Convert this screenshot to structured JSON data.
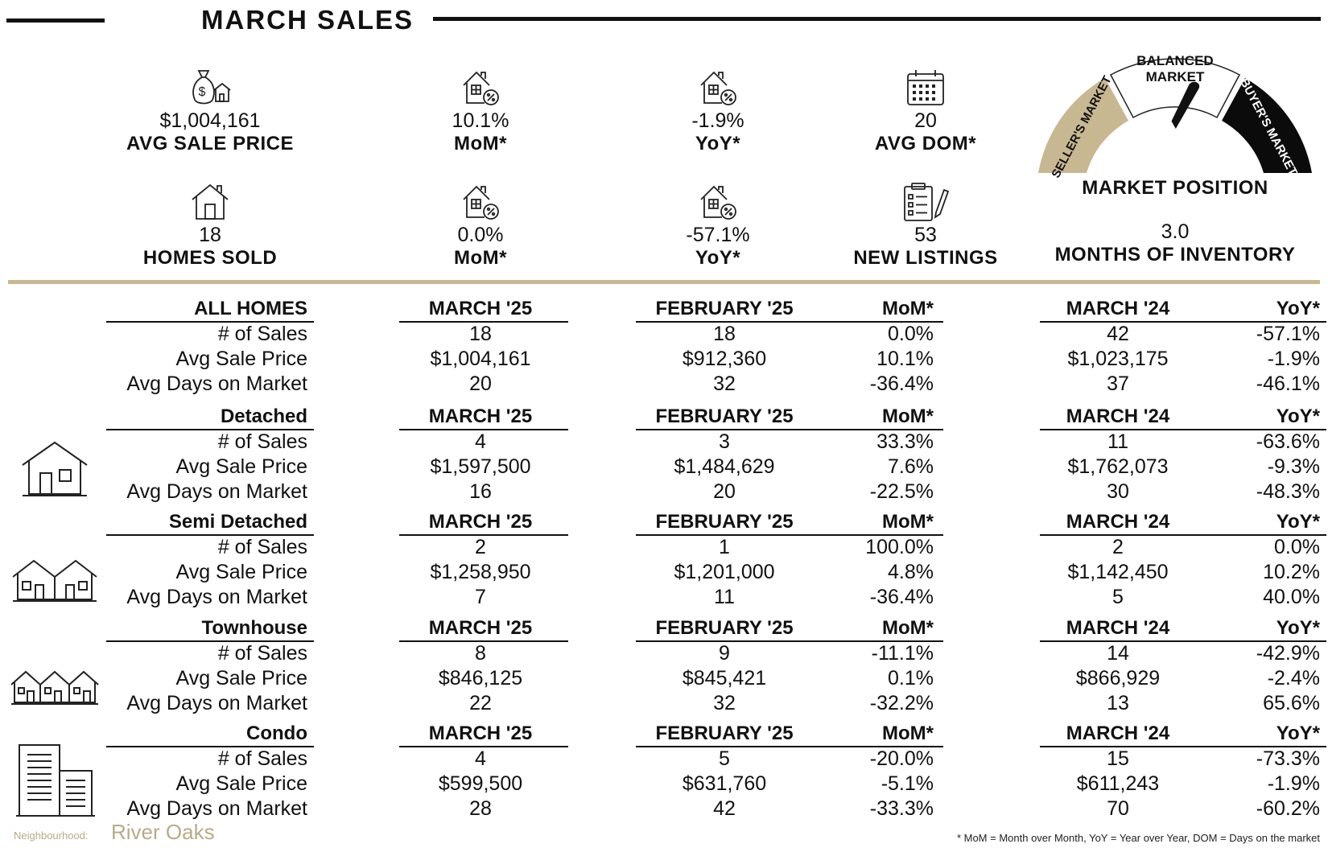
{
  "title": "MARCH SALES",
  "kpis_top": [
    {
      "value": "$1,004,161",
      "label": "AVG SALE PRICE",
      "icon": "money-bag-house-icon"
    },
    {
      "value": "10.1%",
      "label": "MoM*",
      "icon": "house-percent-icon"
    },
    {
      "value": "-1.9%",
      "label": "YoY*",
      "icon": "house-percent-icon"
    },
    {
      "value": "20",
      "label": "AVG DOM*",
      "icon": "calendar-icon"
    }
  ],
  "kpis_bottom": [
    {
      "value": "18",
      "label": "HOMES SOLD",
      "icon": "house-outline-icon"
    },
    {
      "value": "0.0%",
      "label": "MoM*",
      "icon": "house-percent-icon"
    },
    {
      "value": "-57.1%",
      "label": "YoY*",
      "icon": "house-percent-icon"
    },
    {
      "value": "53",
      "label": "NEW LISTINGS",
      "icon": "clipboard-pencil-icon"
    }
  ],
  "gauge": {
    "sellers": "SELLER'S MARKET",
    "balanced_1": "BALANCED",
    "balanced_2": "MARKET",
    "buyers": "BUYER'S MARKET",
    "label": "MARKET POSITION",
    "needle_position": 0.62,
    "colors": {
      "sellers": "#c8b891",
      "balanced": "#ffffff",
      "buyers": "#0b0b0b"
    }
  },
  "months_of_inventory": {
    "value": "3.0",
    "label": "MONTHS OF INVENTORY"
  },
  "columns": {
    "m25": "MARCH '25",
    "f25": "FEBRUARY '25",
    "mom": "MoM*",
    "m24": "MARCH '24",
    "yoy": "YoY*"
  },
  "row_labels": [
    "# of Sales",
    "Avg Sale Price",
    "Avg Days on Market"
  ],
  "sections": [
    {
      "name": "ALL HOMES",
      "icon": "",
      "rows": [
        {
          "m25": "18",
          "f25": "18",
          "mom": "0.0%",
          "m24": "42",
          "yoy": "-57.1%"
        },
        {
          "m25": "$1,004,161",
          "f25": "$912,360",
          "mom": "10.1%",
          "m24": "$1,023,175",
          "yoy": "-1.9%"
        },
        {
          "m25": "20",
          "f25": "32",
          "mom": "-36.4%",
          "m24": "37",
          "yoy": "-46.1%"
        }
      ]
    },
    {
      "name": "Detached",
      "icon": "detached-house-icon",
      "rows": [
        {
          "m25": "4",
          "f25": "3",
          "mom": "33.3%",
          "m24": "11",
          "yoy": "-63.6%"
        },
        {
          "m25": "$1,597,500",
          "f25": "$1,484,629",
          "mom": "7.6%",
          "m24": "$1,762,073",
          "yoy": "-9.3%"
        },
        {
          "m25": "16",
          "f25": "20",
          "mom": "-22.5%",
          "m24": "30",
          "yoy": "-48.3%"
        }
      ]
    },
    {
      "name": "Semi Detached",
      "icon": "semi-detached-house-icon",
      "rows": [
        {
          "m25": "2",
          "f25": "1",
          "mom": "100.0%",
          "m24": "2",
          "yoy": "0.0%"
        },
        {
          "m25": "$1,258,950",
          "f25": "$1,201,000",
          "mom": "4.8%",
          "m24": "$1,142,450",
          "yoy": "10.2%"
        },
        {
          "m25": "7",
          "f25": "11",
          "mom": "-36.4%",
          "m24": "5",
          "yoy": "40.0%"
        }
      ]
    },
    {
      "name": "Townhouse",
      "icon": "townhouse-icon",
      "rows": [
        {
          "m25": "8",
          "f25": "9",
          "mom": "-11.1%",
          "m24": "14",
          "yoy": "-42.9%"
        },
        {
          "m25": "$846,125",
          "f25": "$845,421",
          "mom": "0.1%",
          "m24": "$866,929",
          "yoy": "-2.4%"
        },
        {
          "m25": "22",
          "f25": "32",
          "mom": "-32.2%",
          "m24": "13",
          "yoy": "65.6%"
        }
      ]
    },
    {
      "name": "Condo",
      "icon": "condo-building-icon",
      "rows": [
        {
          "m25": "4",
          "f25": "5",
          "mom": "-20.0%",
          "m24": "15",
          "yoy": "-73.3%"
        },
        {
          "m25": "$599,500",
          "f25": "$631,760",
          "mom": "-5.1%",
          "m24": "$611,243",
          "yoy": "-1.9%"
        },
        {
          "m25": "28",
          "f25": "42",
          "mom": "-33.3%",
          "m24": "70",
          "yoy": "-60.2%"
        }
      ]
    }
  ],
  "footer": {
    "neighbourhood_label": "Neighbourhood:",
    "neighbourhood": "River Oaks",
    "footnote": "* MoM = Month over Month, YoY = Year over Year, DOM = Days on the market"
  }
}
